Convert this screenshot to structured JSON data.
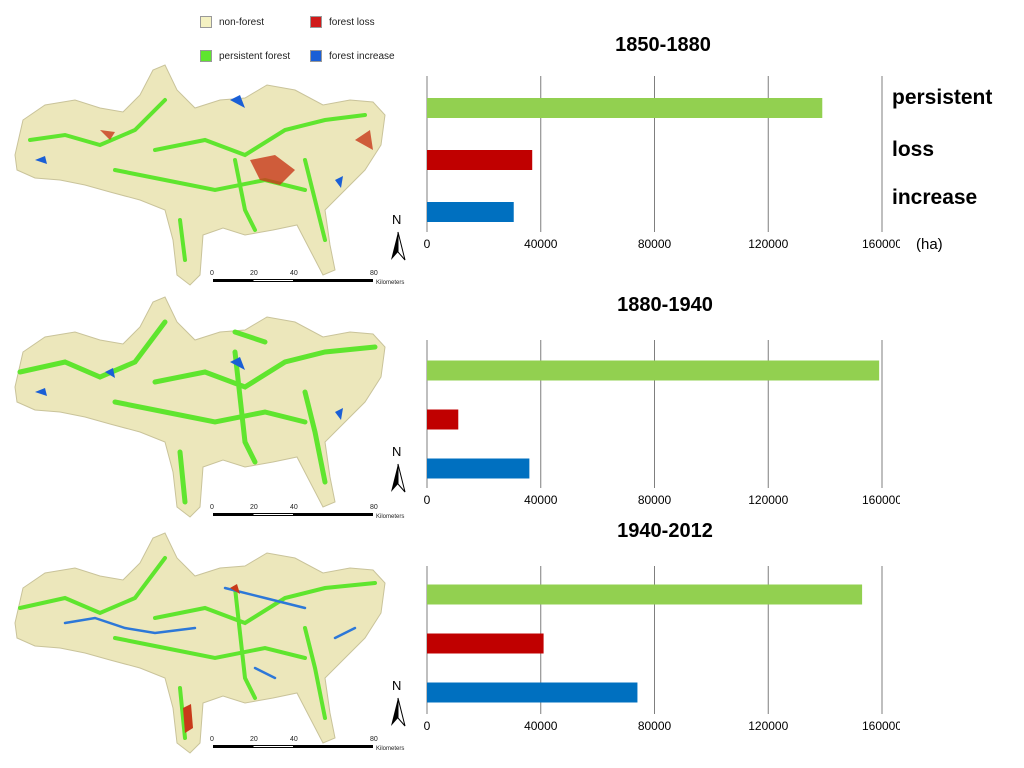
{
  "legend": {
    "items": [
      {
        "label": "non-forest",
        "color": "#f4f1c2"
      },
      {
        "label": "forest loss",
        "color": "#d01a1a"
      },
      {
        "label": "persistent forest",
        "color": "#5fe52e"
      },
      {
        "label": "forest increase",
        "color": "#1a5fd6"
      }
    ]
  },
  "maps": [
    {
      "north": "N",
      "scale_ticks": [
        "0",
        "20",
        "40",
        "80"
      ],
      "scale_unit": "Kilometers"
    },
    {
      "north": "N",
      "scale_ticks": [
        "0",
        "20",
        "40",
        "80"
      ],
      "scale_unit": "Kilometers"
    },
    {
      "north": "N",
      "scale_ticks": [
        "0",
        "20",
        "40",
        "80"
      ],
      "scale_unit": "Kilometers"
    }
  ],
  "category_labels": [
    "persistent",
    "loss",
    "increase"
  ],
  "unit_label": "(ha)",
  "colors": {
    "persistent": "#92d050",
    "loss": "#c00000",
    "increase": "#0070c0"
  },
  "chart_data": [
    {
      "type": "bar",
      "orientation": "horizontal",
      "title": "1850-1880",
      "categories": [
        "persistent",
        "loss",
        "increase"
      ],
      "values": [
        139000,
        37000,
        30500
      ],
      "xlim": [
        0,
        160000
      ],
      "xticks": [
        "0",
        "40000",
        "80000",
        "120000",
        "160000"
      ],
      "grid": true
    },
    {
      "type": "bar",
      "orientation": "horizontal",
      "title": "1880-1940",
      "categories": [
        "persistent",
        "loss",
        "increase"
      ],
      "values": [
        159000,
        11000,
        36000
      ],
      "xlim": [
        0,
        160000
      ],
      "xticks": [
        "0",
        "40000",
        "80000",
        "120000",
        "160000"
      ],
      "grid": true
    },
    {
      "type": "bar",
      "orientation": "horizontal",
      "title": "1940-2012",
      "categories": [
        "persistent",
        "loss",
        "increase"
      ],
      "values": [
        153000,
        41000,
        74000
      ],
      "xlim": [
        0,
        160000
      ],
      "xticks": [
        "0",
        "40000",
        "80000",
        "120000",
        "160000"
      ],
      "grid": true
    }
  ]
}
